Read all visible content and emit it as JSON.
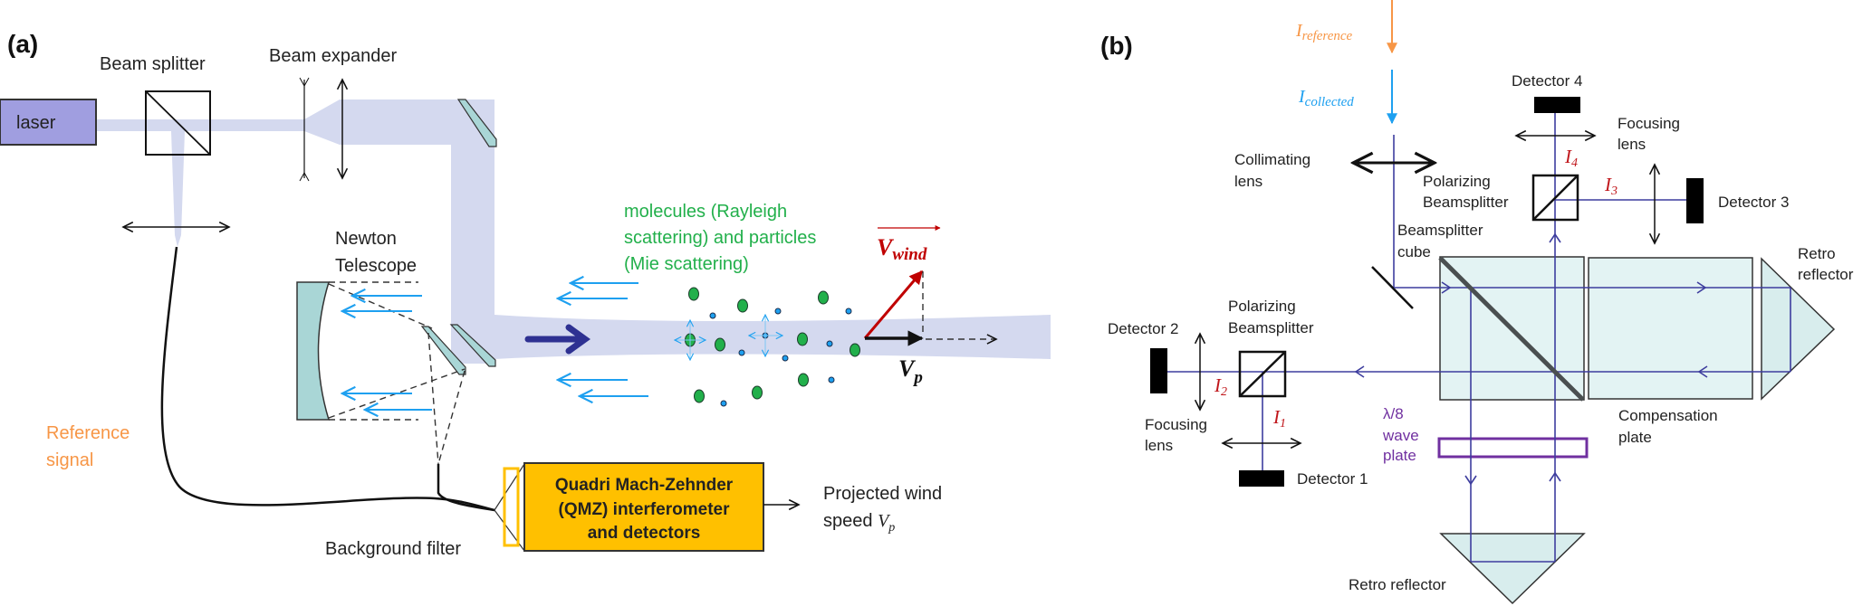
{
  "panel_a": {
    "label": "(a)",
    "laser": "laser",
    "beam_splitter": "Beam splitter",
    "beam_expander": "Beam expander",
    "newton_telescope": [
      "Newton",
      "Telescope"
    ],
    "scatter_text": [
      "molecules (Rayleigh",
      "scattering) and particles",
      "(Mie scattering)"
    ],
    "v_wind": {
      "base": "V",
      "sub": "wind"
    },
    "v_p": {
      "base": "V",
      "sub": "p"
    },
    "reference_signal": [
      "Reference",
      "signal"
    ],
    "background_filter": "Background filter",
    "qmz": [
      "Quadri Mach-Zehnder",
      "(QMZ) interferometer",
      "and detectors"
    ],
    "projected_wind": [
      "Projected wind",
      "speed "
    ],
    "projected_wind_symbol": {
      "base": "V",
      "sub": "p"
    }
  },
  "panel_b": {
    "label": "(b)",
    "i_reference": {
      "base": "I",
      "sub": "reference"
    },
    "i_collected": {
      "base": "I",
      "sub": "collected"
    },
    "collimating_lens": [
      "Collimating",
      "lens"
    ],
    "beamsplitter_cube": [
      "Beamsplitter",
      "cube"
    ],
    "polarizing_bs_top": [
      "Polarizing",
      "Beamsplitter"
    ],
    "polarizing_bs_left": [
      "Polarizing",
      "Beamsplitter"
    ],
    "detector_1": "Detector 1",
    "detector_2": "Detector 2",
    "detector_3": "Detector 3",
    "detector_4": "Detector 4",
    "focusing_lens_top": [
      "Focusing",
      "lens"
    ],
    "focusing_lens_left": [
      "Focusing",
      "lens"
    ],
    "i1": {
      "base": "I",
      "sub": "1"
    },
    "i2": {
      "base": "I",
      "sub": "2"
    },
    "i3": {
      "base": "I",
      "sub": "3"
    },
    "i4": {
      "base": "I",
      "sub": "4"
    },
    "wave_plate": [
      "λ/8",
      "wave",
      "plate"
    ],
    "compensation_plate": [
      "Compensation",
      "plate"
    ],
    "retro_reflector_right": [
      "Retro",
      "reflector"
    ],
    "retro_reflector_bottom": "Retro reflector"
  },
  "colors": {
    "laser": "#a09ee0",
    "beam": "#d4d9ef",
    "optic": "#a9d6d6",
    "scatter_green": "#22b04b",
    "wind_red": "#c00000",
    "collected_blue": "#1ea0f0",
    "reference_orange": "#f79646",
    "qmz_fill": "#ffc000",
    "ray_navy": "#3d3d9e",
    "wave_plate_purple": "#7030a0",
    "label_red": "#c0161b"
  }
}
